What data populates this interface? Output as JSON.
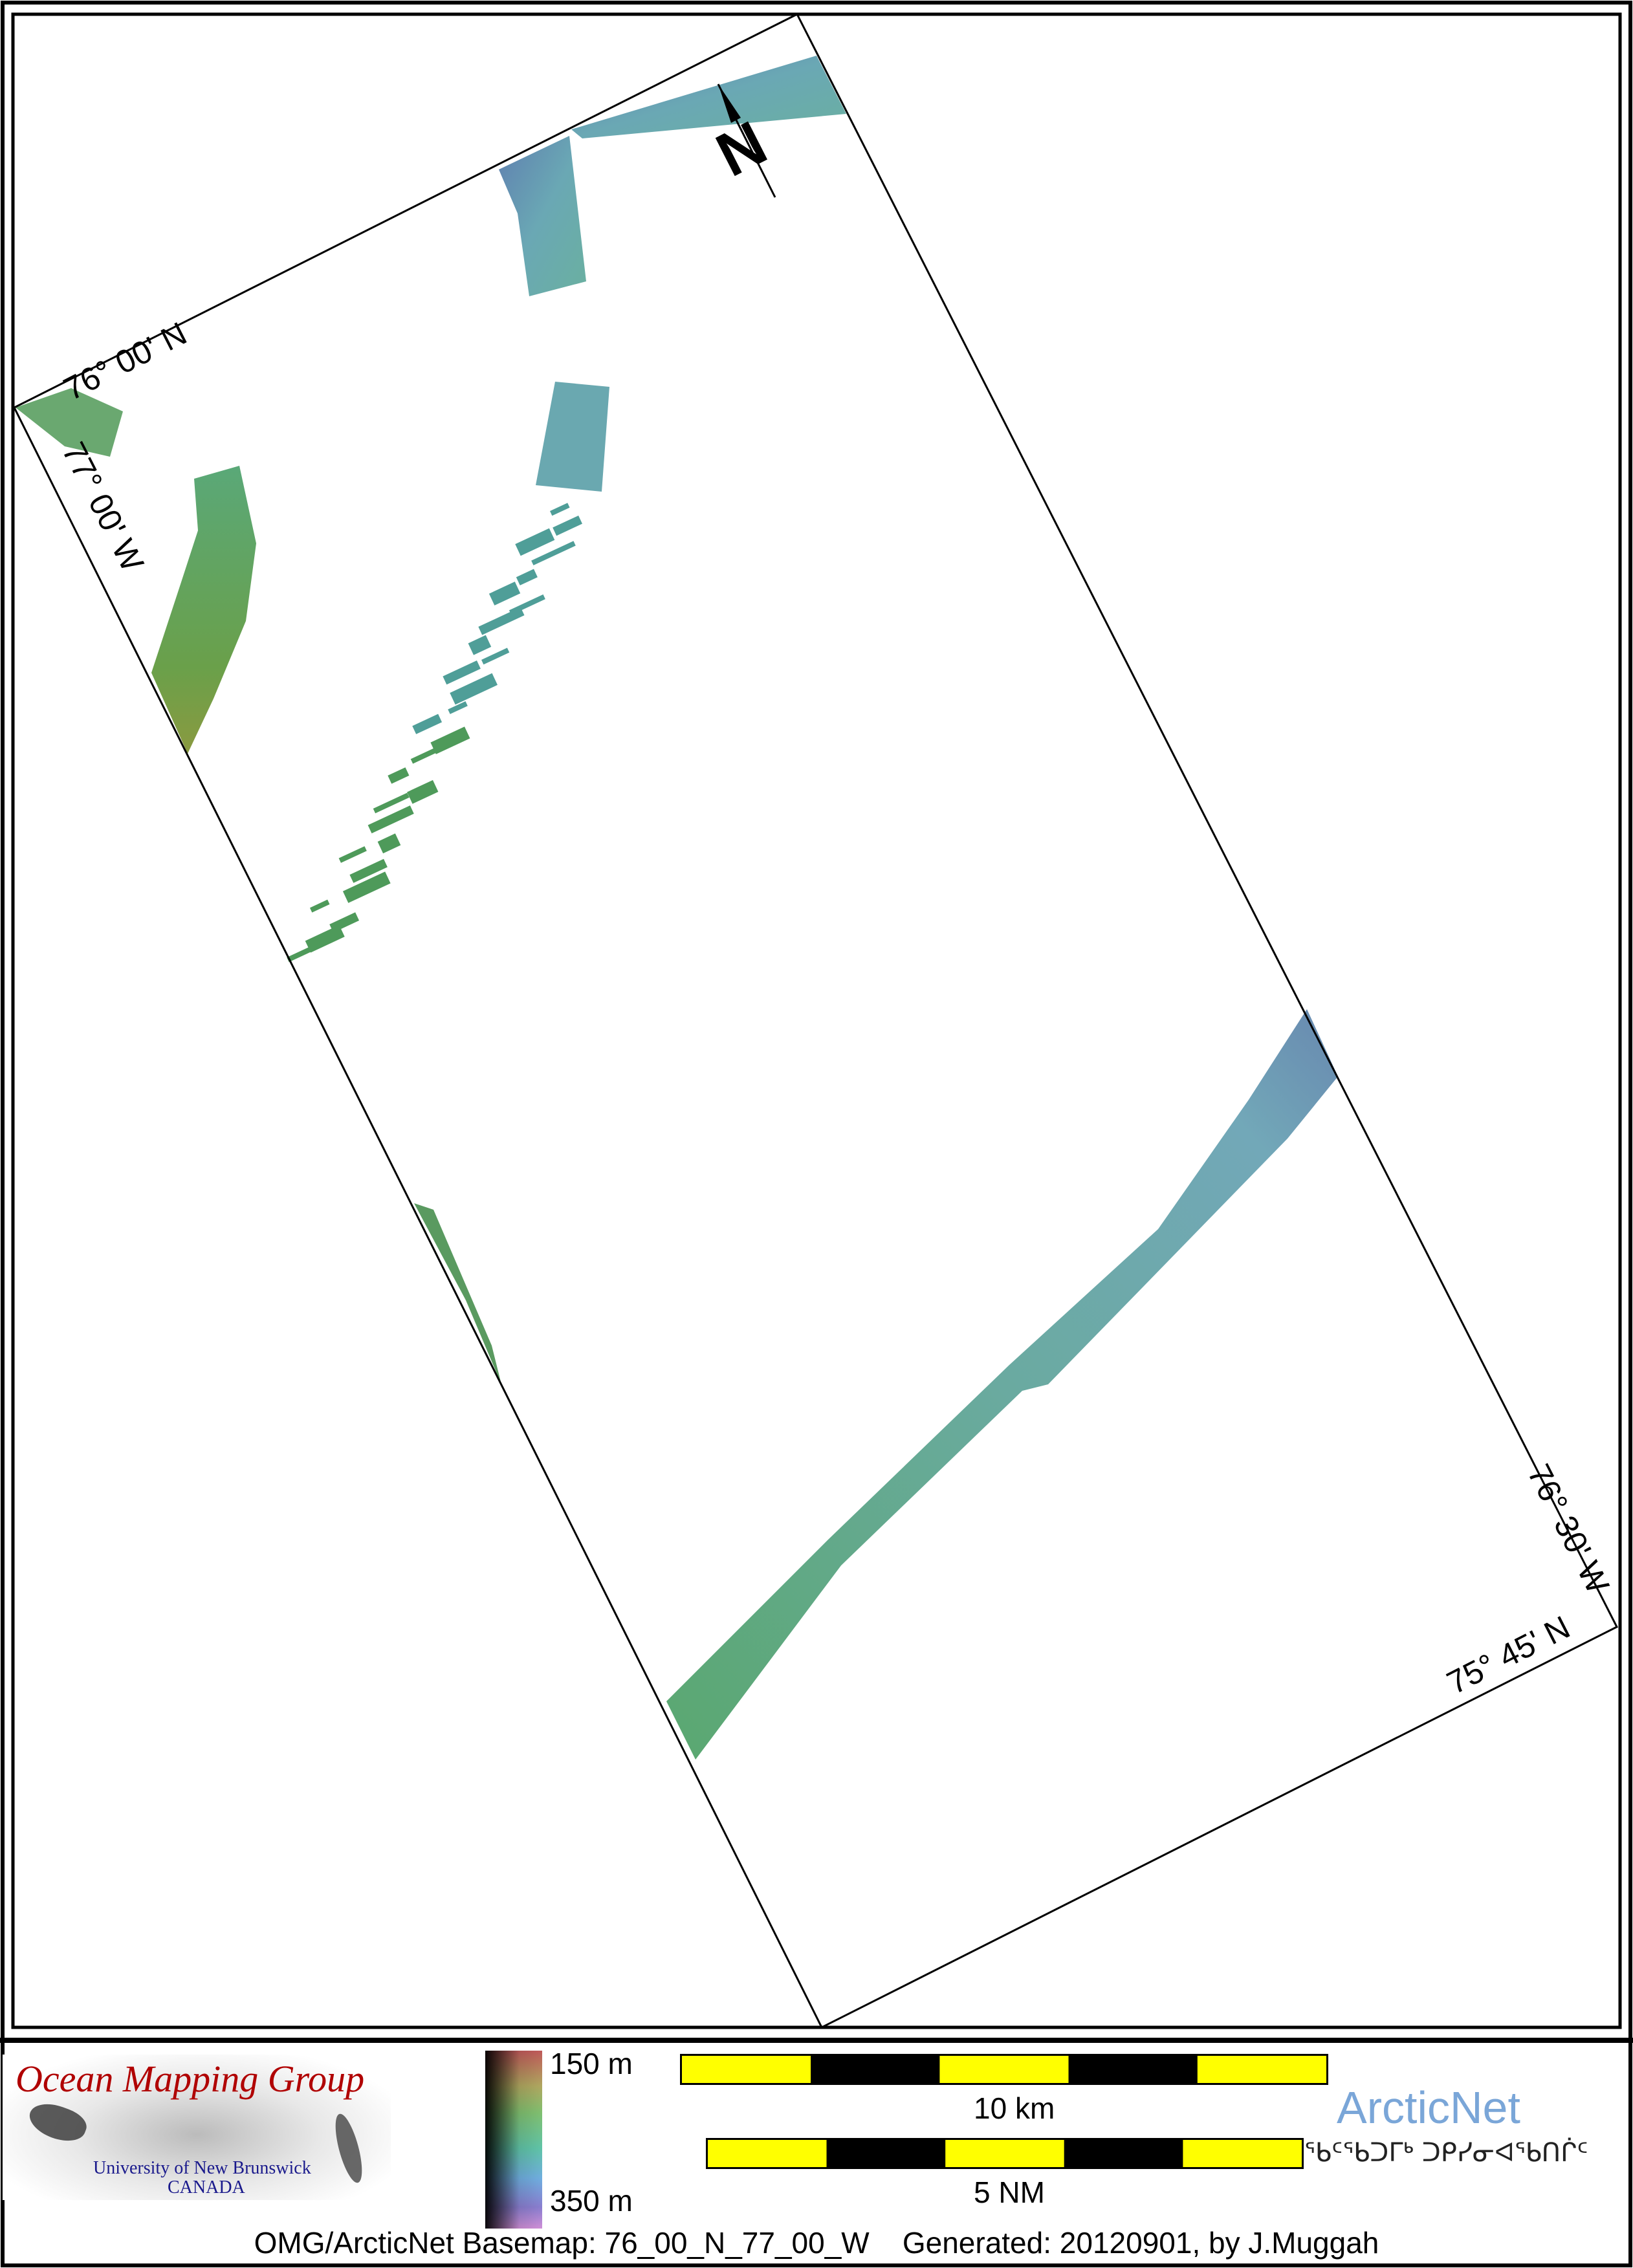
{
  "map": {
    "grid_labels": {
      "top_left_lat": "76° 00' N",
      "top_left_lon": "77° 00' W",
      "bottom_right_lon": "76° 30' W",
      "bottom_right_lat": "75° 45' N"
    },
    "north_arrow_label": "N",
    "swath_colors": [
      "#5a8ab0",
      "#6aa8b0",
      "#70b090",
      "#6aa860"
    ]
  },
  "legend": {
    "logo": {
      "title": "Ocean Mapping Group",
      "line1": "University of New Brunswick",
      "line2": "CANADA"
    },
    "colorbar": {
      "top_label": "150 m",
      "bottom_label": "350 m",
      "min_depth_m": 150,
      "max_depth_m": 350
    },
    "scalebar_km": {
      "label": "10 km",
      "segments": 5
    },
    "scalebar_nm": {
      "label": "5 NM",
      "segments": 5
    },
    "scalebar_colors": [
      "#ffff00",
      "#000000"
    ],
    "arcticnet": {
      "name": "ArcticNet",
      "syllabics": "ᖃᑦᖃᑐᒥᒃ ᑐᑭᓯᓂᐊᖃᑎᒌᑦ",
      "color": "#7aa6d8"
    },
    "footer": "OMG/ArcticNet Basemap: 76_00_N_77_00_W    Generated: 20120901, by J.Muggah"
  }
}
